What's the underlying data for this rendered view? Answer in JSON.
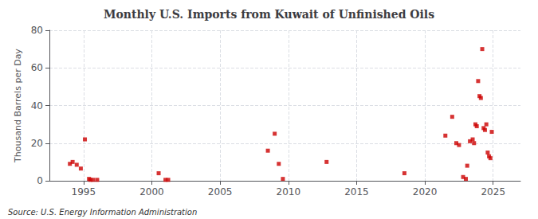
{
  "chart_data": {
    "type": "scatter",
    "title": "Monthly U.S. Imports from Kuwait of Unfinished Oils",
    "ylabel": "Thousand Barrels per Day",
    "annotations": [
      "Source: U.S. Energy Information Administration"
    ],
    "color": "#cc0000",
    "marker": "square",
    "grid": true,
    "xlim": [
      1992.5,
      2027.0
    ],
    "ylim": [
      0,
      80
    ],
    "xticks": [
      1995,
      2000,
      2005,
      2010,
      2015,
      2020,
      2025
    ],
    "yticks": [
      0,
      20,
      40,
      60,
      80
    ],
    "x": [
      1994.0,
      1994.2,
      1994.5,
      1994.8,
      1995.1,
      1995.4,
      1995.5,
      1995.7,
      1996.0,
      2000.5,
      2001.0,
      2001.2,
      2008.5,
      2009.0,
      2009.3,
      2009.6,
      2012.8,
      2018.5,
      2021.5,
      2022.0,
      2022.3,
      2022.5,
      2022.8,
      2023.0,
      2023.1,
      2023.3,
      2023.5,
      2023.6,
      2023.7,
      2023.8,
      2023.9,
      2024.0,
      2024.1,
      2024.2,
      2024.3,
      2024.4,
      2024.5,
      2024.6,
      2024.7,
      2024.8,
      2024.9
    ],
    "values": [
      9.0,
      10.0,
      8.5,
      6.5,
      22.0,
      1.0,
      0.5,
      0.5,
      0.5,
      4.0,
      0.5,
      0.5,
      16.0,
      25.0,
      9.0,
      1.0,
      10.0,
      4.0,
      24.0,
      34.0,
      20.0,
      19.0,
      2.0,
      1.0,
      8.0,
      21.0,
      22.0,
      20.0,
      30.0,
      29.0,
      53.0,
      45.0,
      44.0,
      70.0,
      28.0,
      27.0,
      30.0,
      15.0,
      13.0,
      12.0,
      26.0
    ]
  }
}
